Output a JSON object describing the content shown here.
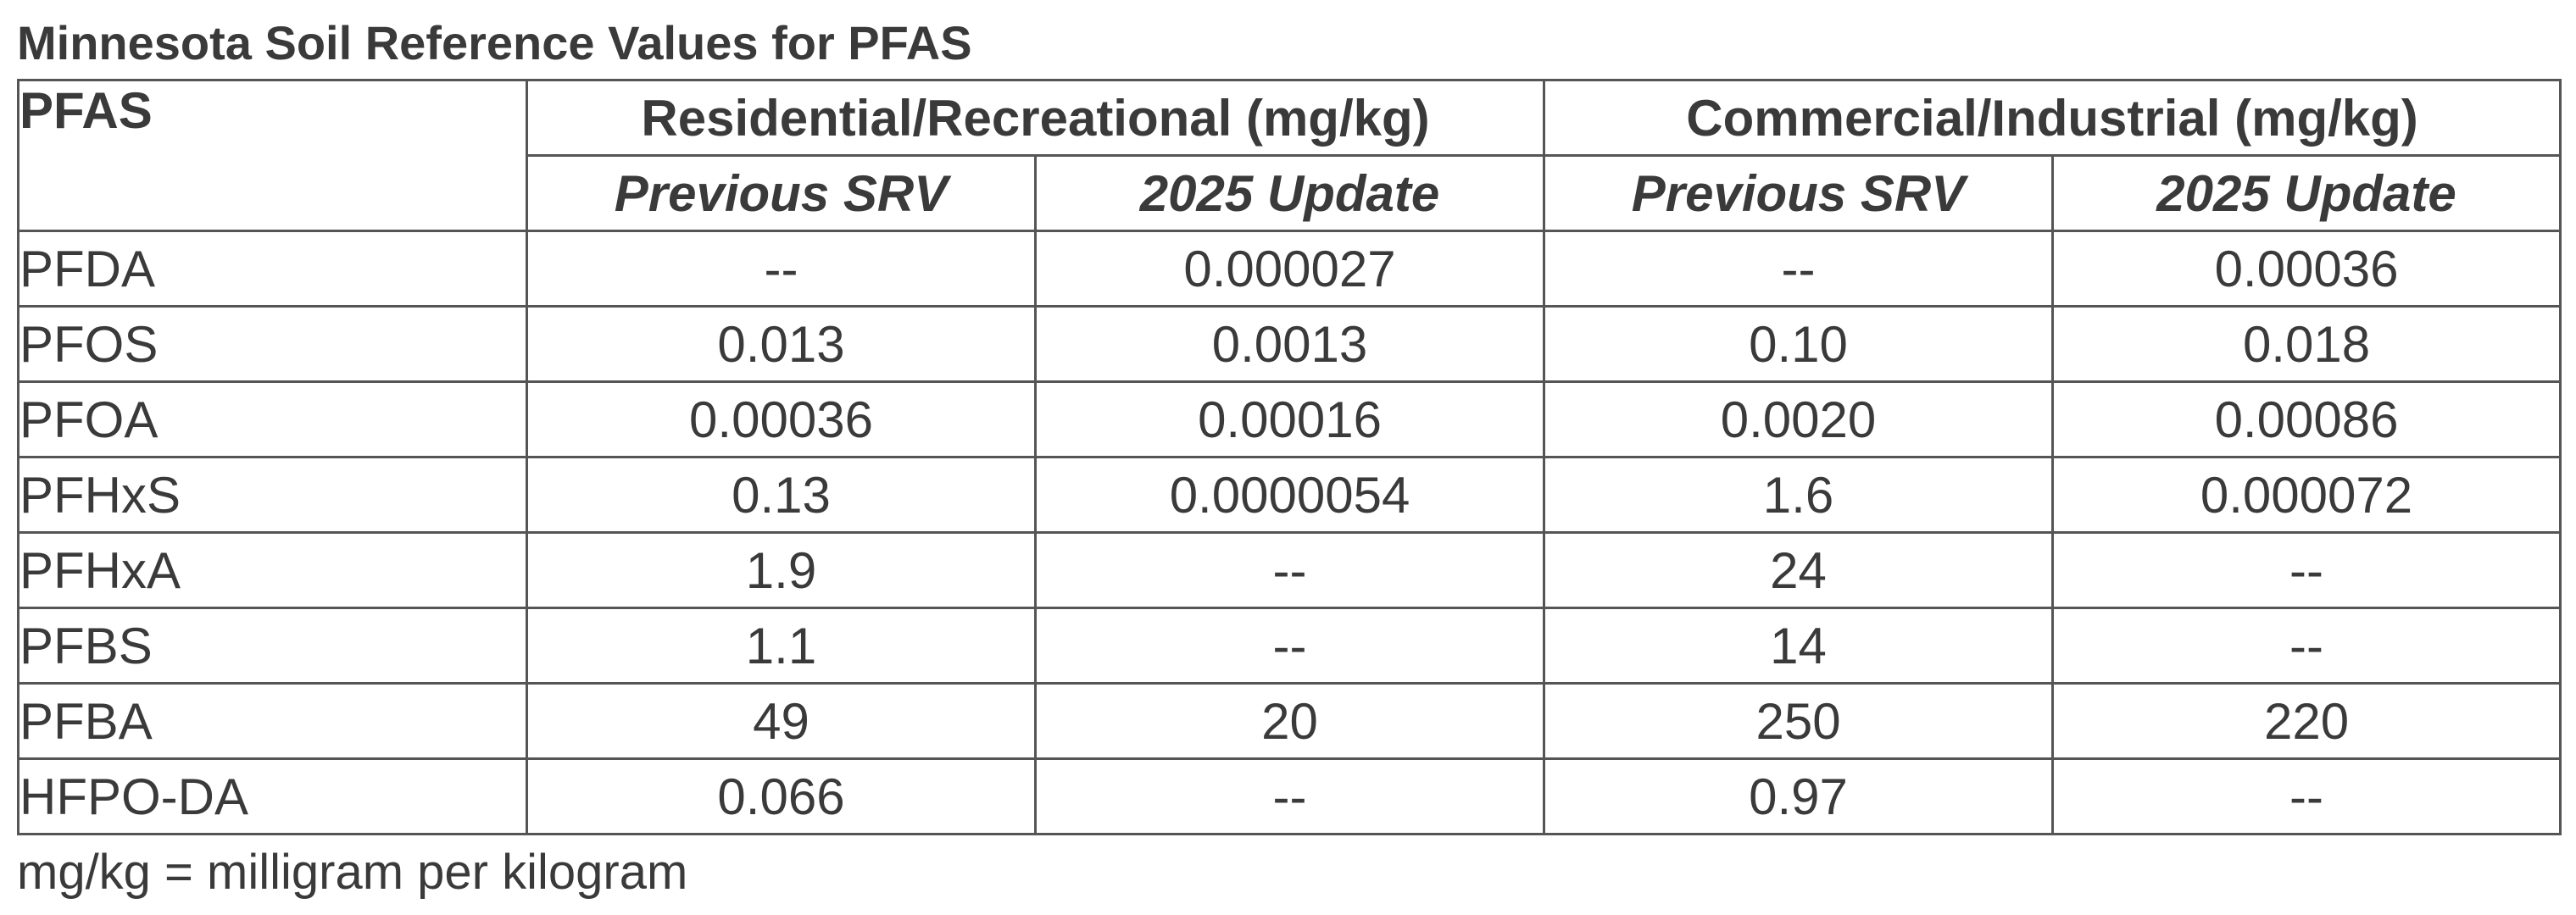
{
  "title": "Minnesota Soil Reference Values for PFAS",
  "table": {
    "pfas_header": "PFAS",
    "groups": [
      "Residential/Recreational (mg/kg)",
      "Commercial/Industrial (mg/kg)"
    ],
    "subheaders": [
      "Previous SRV",
      "2025 Update",
      "Previous SRV",
      "2025 Update"
    ],
    "rows": [
      {
        "name": "PFDA",
        "values": [
          "--",
          "0.000027",
          "--",
          "0.00036"
        ]
      },
      {
        "name": "PFOS",
        "values": [
          "0.013",
          "0.0013",
          "0.10",
          "0.018"
        ]
      },
      {
        "name": "PFOA",
        "values": [
          "0.00036",
          "0.00016",
          "0.0020",
          "0.00086"
        ]
      },
      {
        "name": "PFHxS",
        "values": [
          "0.13",
          "0.0000054",
          "1.6",
          "0.000072"
        ]
      },
      {
        "name": "PFHxA",
        "values": [
          "1.9",
          "--",
          "24",
          "--"
        ]
      },
      {
        "name": "PFBS",
        "values": [
          "1.1",
          "--",
          "14",
          "--"
        ]
      },
      {
        "name": "PFBA",
        "values": [
          "49",
          "20",
          "250",
          "220"
        ]
      },
      {
        "name": "HFPO-DA",
        "values": [
          "0.066",
          "--",
          "0.97",
          "--"
        ]
      }
    ]
  },
  "footnote": "mg/kg = milligram per kilogram"
}
